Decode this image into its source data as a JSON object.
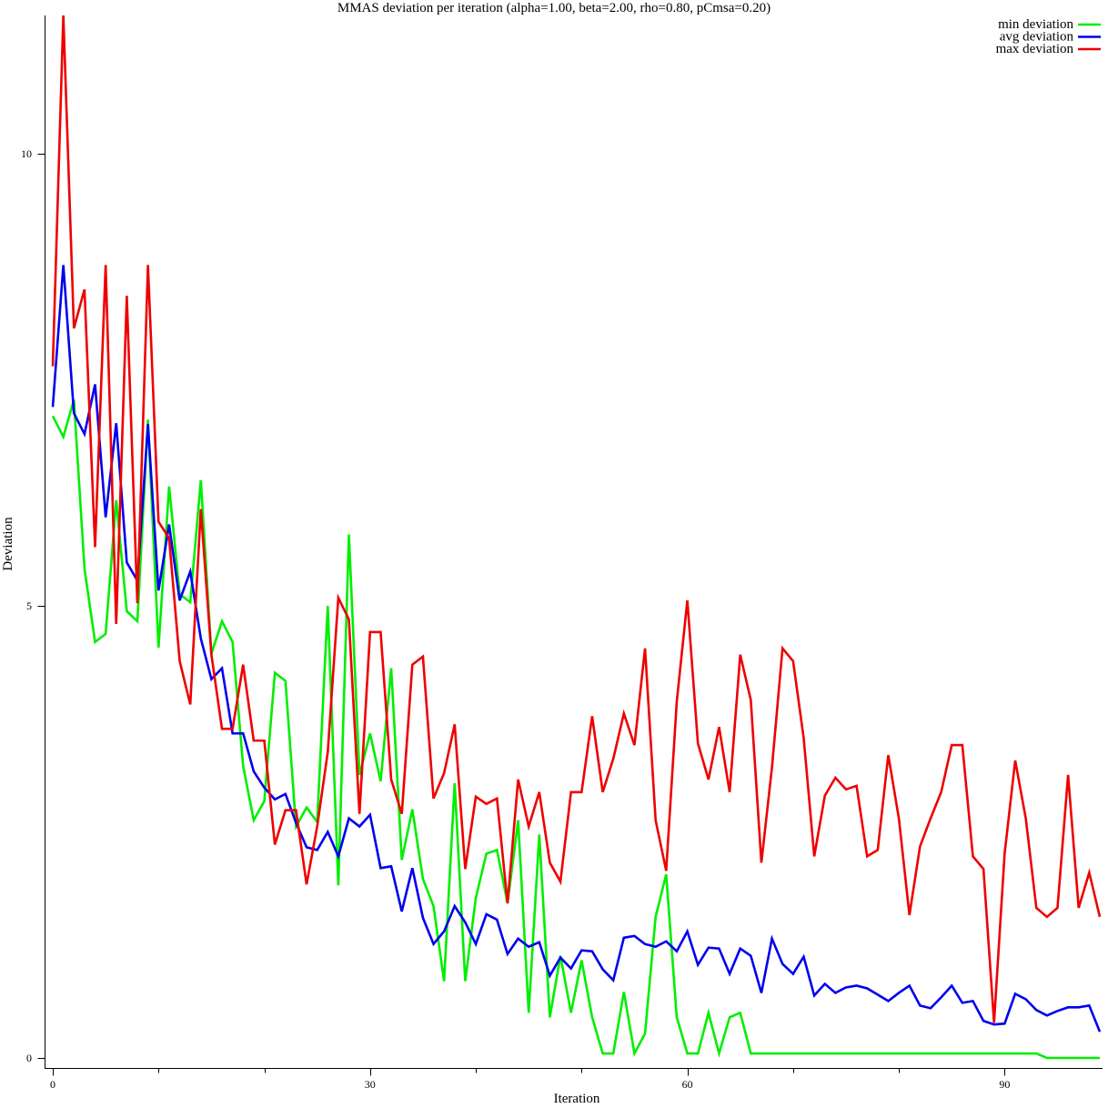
{
  "chart_data": {
    "type": "line",
    "title": "MMAS deviation per iteration (alpha=1.00, beta=2.00, rho=0.80, pCmsa=0.20)",
    "xlabel": "Iteration",
    "ylabel": "Deviation",
    "xlim": [
      0,
      99
    ],
    "ylim": [
      0,
      11.53
    ],
    "x_ticks": [
      0,
      30,
      60,
      90
    ],
    "x_minor_ticks": [
      10,
      20,
      40,
      50,
      70,
      80
    ],
    "y_ticks": [
      0,
      5,
      10
    ],
    "grid": false,
    "legend_position": "top-right",
    "series": [
      {
        "name": "min deviation",
        "color": "#00ee00",
        "values": [
          7.1,
          6.87,
          7.28,
          5.41,
          4.6,
          4.69,
          6.17,
          4.94,
          4.83,
          7.06,
          4.54,
          6.32,
          5.13,
          5.04,
          6.39,
          4.47,
          4.83,
          4.6,
          3.23,
          2.63,
          2.84,
          4.26,
          4.17,
          2.56,
          2.77,
          2.61,
          5.0,
          1.91,
          5.79,
          3.13,
          3.59,
          3.06,
          4.31,
          2.19,
          2.75,
          1.98,
          1.68,
          0.85,
          3.04,
          0.85,
          1.77,
          2.26,
          2.3,
          1.71,
          2.63,
          0.5,
          2.47,
          0.45,
          1.13,
          0.5,
          1.08,
          0.45,
          0.05,
          0.05,
          0.73,
          0.05,
          0.27,
          1.56,
          2.03,
          0.45,
          0.05,
          0.05,
          0.5,
          0.05,
          0.45,
          0.5,
          0.05,
          0.05,
          0.05,
          0.05,
          0.05,
          0.05,
          0.05,
          0.05,
          0.05,
          0.05,
          0.05,
          0.05,
          0.05,
          0.05,
          0.05,
          0.05,
          0.05,
          0.05,
          0.05,
          0.05,
          0.05,
          0.05,
          0.05,
          0.05,
          0.05,
          0.05,
          0.05,
          0.05,
          0.0,
          0.0,
          0.0,
          0.0,
          0.0,
          0.0
        ]
      },
      {
        "name": "avg deviation",
        "color": "#0000ee",
        "values": [
          7.2,
          8.77,
          7.13,
          6.9,
          7.45,
          5.98,
          7.02,
          5.48,
          5.28,
          7.01,
          5.17,
          5.9,
          5.06,
          5.38,
          4.64,
          4.19,
          4.31,
          3.59,
          3.59,
          3.17,
          2.99,
          2.86,
          2.92,
          2.6,
          2.33,
          2.3,
          2.5,
          2.23,
          2.65,
          2.56,
          2.69,
          2.1,
          2.12,
          1.62,
          2.1,
          1.55,
          1.26,
          1.4,
          1.68,
          1.5,
          1.26,
          1.59,
          1.53,
          1.15,
          1.32,
          1.23,
          1.28,
          0.91,
          1.11,
          0.99,
          1.19,
          1.18,
          0.98,
          0.86,
          1.33,
          1.35,
          1.26,
          1.23,
          1.29,
          1.18,
          1.4,
          1.03,
          1.22,
          1.21,
          0.93,
          1.21,
          1.13,
          0.72,
          1.32,
          1.04,
          0.93,
          1.12,
          0.69,
          0.82,
          0.72,
          0.78,
          0.8,
          0.77,
          0.7,
          0.63,
          0.72,
          0.8,
          0.58,
          0.55,
          0.67,
          0.8,
          0.61,
          0.63,
          0.41,
          0.37,
          0.38,
          0.71,
          0.65,
          0.53,
          0.47,
          0.52,
          0.56,
          0.56,
          0.58,
          0.29
        ]
      },
      {
        "name": "max deviation",
        "color": "#ee0000",
        "values": [
          7.65,
          11.53,
          8.07,
          8.5,
          5.65,
          8.77,
          4.8,
          8.43,
          5.03,
          8.77,
          5.93,
          5.75,
          4.39,
          3.91,
          6.07,
          4.46,
          3.64,
          3.64,
          4.35,
          3.51,
          3.51,
          2.36,
          2.74,
          2.74,
          1.92,
          2.56,
          3.38,
          5.09,
          4.85,
          2.7,
          4.71,
          4.71,
          3.08,
          2.7,
          4.35,
          4.44,
          2.87,
          3.15,
          3.69,
          2.09,
          2.89,
          2.81,
          2.87,
          1.71,
          3.08,
          2.56,
          2.94,
          2.16,
          1.95,
          2.94,
          2.94,
          3.78,
          2.94,
          3.31,
          3.81,
          3.46,
          4.53,
          2.63,
          2.07,
          3.94,
          5.06,
          3.48,
          3.08,
          3.66,
          2.94,
          4.46,
          3.96,
          2.16,
          3.21,
          4.53,
          4.39,
          3.54,
          2.23,
          2.9,
          3.1,
          2.97,
          3.01,
          2.23,
          2.3,
          3.35,
          2.65,
          1.58,
          2.34,
          2.65,
          2.94,
          3.46,
          3.46,
          2.23,
          2.09,
          0.39,
          2.26,
          3.29,
          2.65,
          1.66,
          1.56,
          1.66,
          3.13,
          1.66,
          2.05,
          1.56
        ]
      }
    ]
  }
}
